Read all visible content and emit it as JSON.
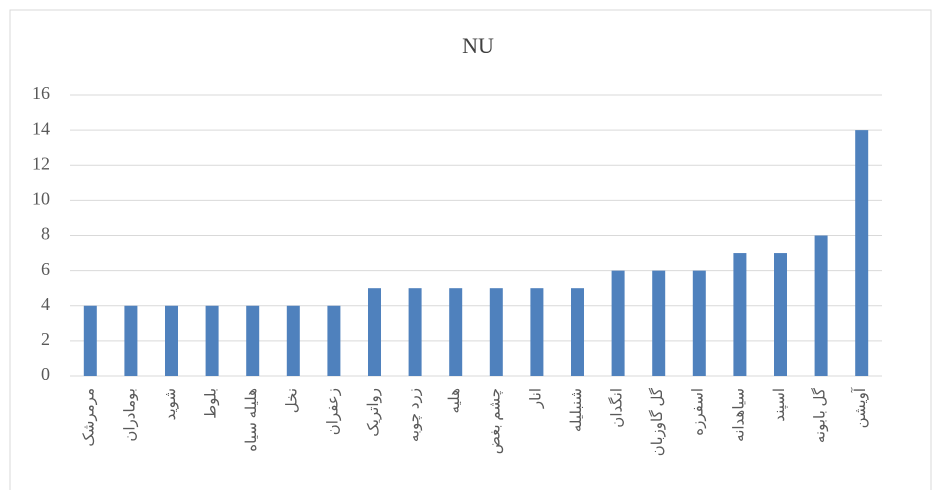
{
  "chart_data": {
    "type": "bar",
    "title": "NU",
    "categories": [
      "مرمرشک",
      "بومادران",
      "شوید",
      "بلوط",
      "هلیله سیاه",
      "نخل",
      "زعفران",
      "رواتریک",
      "زرد چوبه",
      "هلیه",
      "چشم بغض",
      "انار",
      "شنبلیله",
      "انگدان",
      "گل گاوزبان",
      "اسفرزه",
      "سیاهدانه",
      "اسپند",
      "گل بابونه",
      "آویشن"
    ],
    "values": [
      4,
      4,
      4,
      4,
      4,
      4,
      4,
      5,
      5,
      5,
      5,
      5,
      5,
      6,
      6,
      6,
      7,
      7,
      8,
      14
    ],
    "color": "#4f81bd",
    "ylim": [
      0,
      16
    ],
    "yticks": [
      0,
      2,
      4,
      6,
      8,
      10,
      12,
      14,
      16
    ],
    "grid": true
  }
}
